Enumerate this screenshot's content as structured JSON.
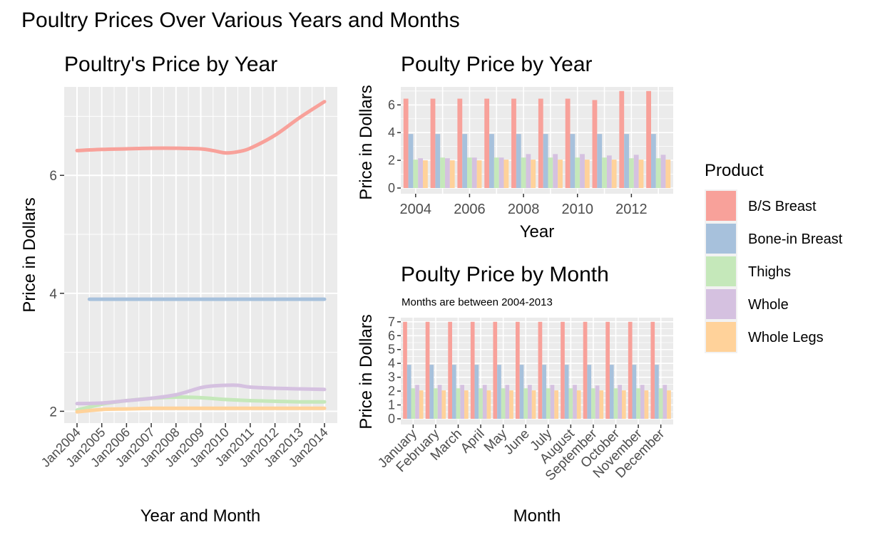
{
  "page": {
    "title": "Poultry Prices Over Various Years and Months"
  },
  "legend": {
    "title": "Product",
    "placement": "right",
    "items": [
      {
        "name": "B/S Breast",
        "color": "#F8A19A"
      },
      {
        "name": "Bone-in Breast",
        "color": "#A7C1DC"
      },
      {
        "name": "Thighs",
        "color": "#C5E8BA"
      },
      {
        "name": "Whole",
        "color": "#D5C1E0"
      },
      {
        "name": "Whole Legs",
        "color": "#FFD29A"
      }
    ]
  },
  "chart_data": [
    {
      "id": "line",
      "type": "line",
      "title": "Poultry's Price by Year",
      "xlabel": "Year and Month",
      "ylabel": "Price in Dollars",
      "x_ticks": [
        "Jan2004",
        "Jan2005",
        "Jan2006",
        "Jan2007",
        "Jan2008",
        "Jan2009",
        "Jan2010",
        "Jan2011",
        "Jan2012",
        "Jan2013",
        "Jan2014"
      ],
      "xlim": [
        2004,
        2014
      ],
      "ylim": [
        1.8,
        7.5
      ],
      "y_ticks": [
        2,
        4,
        6
      ],
      "grid": true,
      "series": [
        {
          "name": "B/S Breast",
          "x": [
            2004,
            2005,
            2006,
            2007,
            2008,
            2009,
            2009.5,
            2010,
            2010.5,
            2011,
            2012,
            2013,
            2014
          ],
          "values": [
            6.42,
            6.44,
            6.45,
            6.46,
            6.46,
            6.45,
            6.42,
            6.38,
            6.4,
            6.46,
            6.68,
            6.98,
            7.25
          ]
        },
        {
          "name": "Bone-in Breast",
          "x": [
            2004.5,
            2014
          ],
          "values": [
            3.9,
            3.9
          ]
        },
        {
          "name": "Thighs",
          "x": [
            2004,
            2005,
            2006,
            2007,
            2008,
            2009,
            2010,
            2011,
            2012,
            2013,
            2014
          ],
          "values": [
            2.02,
            2.12,
            2.18,
            2.22,
            2.24,
            2.23,
            2.2,
            2.18,
            2.17,
            2.16,
            2.16
          ]
        },
        {
          "name": "Whole",
          "x": [
            2004,
            2005,
            2006,
            2007,
            2008,
            2009,
            2009.5,
            2010,
            2010.5,
            2011,
            2012,
            2013,
            2014
          ],
          "values": [
            2.13,
            2.14,
            2.18,
            2.22,
            2.28,
            2.4,
            2.43,
            2.44,
            2.44,
            2.41,
            2.39,
            2.38,
            2.37
          ]
        },
        {
          "name": "Whole Legs",
          "x": [
            2004,
            2005,
            2006,
            2007,
            2008,
            2009,
            2010,
            2011,
            2012,
            2013,
            2014
          ],
          "values": [
            1.99,
            2.03,
            2.04,
            2.05,
            2.05,
            2.05,
            2.05,
            2.05,
            2.05,
            2.05,
            2.05
          ]
        }
      ]
    },
    {
      "id": "year-bars",
      "type": "bar",
      "title": "Poulty Price by Year",
      "xlabel": "Year",
      "ylabel": "Price in Dollars",
      "categories": [
        2004,
        2005,
        2006,
        2007,
        2008,
        2009,
        2010,
        2011,
        2012,
        2013
      ],
      "x_ticks": [
        2004,
        2006,
        2008,
        2010,
        2012
      ],
      "y_ticks": [
        0,
        2,
        4,
        6
      ],
      "ylim": [
        0,
        7.3
      ],
      "grid": true,
      "series": [
        {
          "name": "B/S Breast",
          "values": [
            6.45,
            6.45,
            6.45,
            6.45,
            6.45,
            6.45,
            6.45,
            6.35,
            7.0,
            7.0
          ]
        },
        {
          "name": "Bone-in Breast",
          "values": [
            3.9,
            3.9,
            3.9,
            3.9,
            3.9,
            3.9,
            3.9,
            3.9,
            3.9,
            3.9
          ]
        },
        {
          "name": "Thighs",
          "values": [
            2.05,
            2.2,
            2.2,
            2.2,
            2.2,
            2.2,
            2.2,
            2.2,
            2.15,
            2.15
          ]
        },
        {
          "name": "Whole",
          "values": [
            2.15,
            2.15,
            2.2,
            2.2,
            2.45,
            2.45,
            2.45,
            2.35,
            2.4,
            2.4
          ]
        },
        {
          "name": "Whole Legs",
          "values": [
            2.0,
            2.0,
            2.0,
            2.05,
            2.05,
            2.05,
            2.05,
            2.05,
            2.05,
            2.05
          ]
        }
      ]
    },
    {
      "id": "month-bars",
      "type": "bar",
      "title": "Poulty Price by Month",
      "subtitle": "Months are between 2004-2013",
      "xlabel": "Month",
      "ylabel": "Price in Dollars",
      "categories": [
        "January",
        "February",
        "March",
        "April",
        "May",
        "June",
        "July",
        "August",
        "September",
        "October",
        "November",
        "December"
      ],
      "y_ticks": [
        0,
        1,
        2,
        3,
        4,
        5,
        6,
        7
      ],
      "ylim": [
        0,
        7.3
      ],
      "grid": true,
      "series": [
        {
          "name": "B/S Breast",
          "values": [
            7,
            7,
            7,
            7,
            7,
            7,
            7,
            7,
            7,
            7,
            7,
            7
          ]
        },
        {
          "name": "Bone-in Breast",
          "values": [
            3.9,
            3.9,
            3.9,
            3.9,
            3.9,
            3.9,
            3.9,
            3.9,
            3.9,
            3.9,
            3.9,
            3.9
          ]
        },
        {
          "name": "Thighs",
          "values": [
            2.2,
            2.2,
            2.2,
            2.2,
            2.2,
            2.2,
            2.2,
            2.2,
            2.2,
            2.2,
            2.2,
            2.2
          ]
        },
        {
          "name": "Whole",
          "values": [
            2.45,
            2.45,
            2.45,
            2.45,
            2.45,
            2.45,
            2.45,
            2.45,
            2.4,
            2.45,
            2.45,
            2.45
          ]
        },
        {
          "name": "Whole Legs",
          "values": [
            2.05,
            2.05,
            2.05,
            2.05,
            2.05,
            2.05,
            2.05,
            2.05,
            2.05,
            2.05,
            2.05,
            2.05
          ]
        }
      ]
    }
  ]
}
